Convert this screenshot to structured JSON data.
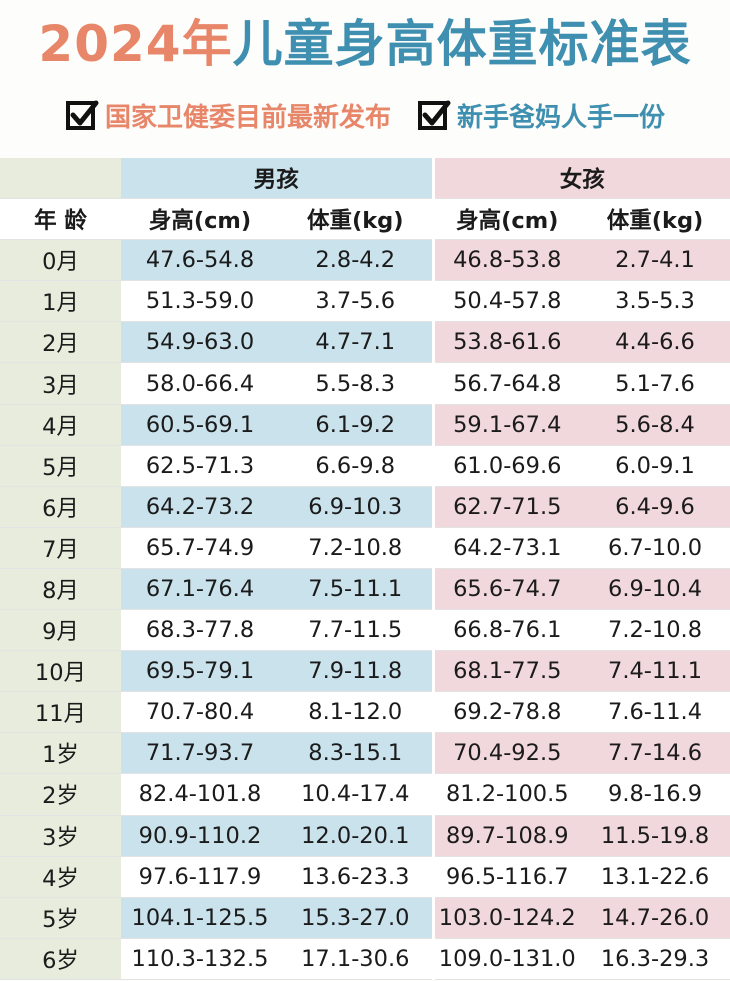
{
  "title": {
    "year": "2024年",
    "rest": "儿童身高体重标准表"
  },
  "subtitles": [
    {
      "icon": "checkbox-checked-icon",
      "text": "国家卫健委目前最新发布"
    },
    {
      "icon": "checkbox-checked-icon",
      "text": "新手爸妈人手一份"
    }
  ],
  "colors": {
    "orange": "#e8866a",
    "blue": "#3e8fb0",
    "boy_bg": "#c9e2ec",
    "girl_bg": "#f1d8dc",
    "age_bg": "#e7ecdd"
  },
  "table": {
    "groups": {
      "boy": "男孩",
      "girl": "女孩"
    },
    "headers": {
      "age": "年 龄",
      "boy_height": "身高(cm)",
      "boy_weight": "体重(kg)",
      "girl_height": "身高(cm)",
      "girl_weight": "体重(kg)"
    },
    "rows": [
      {
        "age": "0月",
        "bh": "47.6-54.8",
        "bw": "2.8-4.2",
        "gh": "46.8-53.8",
        "gw": "2.7-4.1"
      },
      {
        "age": "1月",
        "bh": "51.3-59.0",
        "bw": "3.7-5.6",
        "gh": "50.4-57.8",
        "gw": "3.5-5.3"
      },
      {
        "age": "2月",
        "bh": "54.9-63.0",
        "bw": "4.7-7.1",
        "gh": "53.8-61.6",
        "gw": "4.4-6.6"
      },
      {
        "age": "3月",
        "bh": "58.0-66.4",
        "bw": "5.5-8.3",
        "gh": "56.7-64.8",
        "gw": "5.1-7.6"
      },
      {
        "age": "4月",
        "bh": "60.5-69.1",
        "bw": "6.1-9.2",
        "gh": "59.1-67.4",
        "gw": "5.6-8.4"
      },
      {
        "age": "5月",
        "bh": "62.5-71.3",
        "bw": "6.6-9.8",
        "gh": "61.0-69.6",
        "gw": "6.0-9.1"
      },
      {
        "age": "6月",
        "bh": "64.2-73.2",
        "bw": "6.9-10.3",
        "gh": "62.7-71.5",
        "gw": "6.4-9.6"
      },
      {
        "age": "7月",
        "bh": "65.7-74.9",
        "bw": "7.2-10.8",
        "gh": "64.2-73.1",
        "gw": "6.7-10.0"
      },
      {
        "age": "8月",
        "bh": "67.1-76.4",
        "bw": "7.5-11.1",
        "gh": "65.6-74.7",
        "gw": "6.9-10.4"
      },
      {
        "age": "9月",
        "bh": "68.3-77.8",
        "bw": "7.7-11.5",
        "gh": "66.8-76.1",
        "gw": "7.2-10.8"
      },
      {
        "age": "10月",
        "bh": "69.5-79.1",
        "bw": "7.9-11.8",
        "gh": "68.1-77.5",
        "gw": "7.4-11.1"
      },
      {
        "age": "11月",
        "bh": "70.7-80.4",
        "bw": "8.1-12.0",
        "gh": "69.2-78.8",
        "gw": "7.6-11.4"
      },
      {
        "age": "1岁",
        "bh": "71.7-93.7",
        "bw": "8.3-15.1",
        "gh": "70.4-92.5",
        "gw": "7.7-14.6"
      },
      {
        "age": "2岁",
        "bh": "82.4-101.8",
        "bw": "10.4-17.4",
        "gh": "81.2-100.5",
        "gw": "9.8-16.9"
      },
      {
        "age": "3岁",
        "bh": "90.9-110.2",
        "bw": "12.0-20.1",
        "gh": "89.7-108.9",
        "gw": "11.5-19.8"
      },
      {
        "age": "4岁",
        "bh": "97.6-117.9",
        "bw": "13.6-23.3",
        "gh": "96.5-116.7",
        "gw": "13.1-22.6"
      },
      {
        "age": "5岁",
        "bh": "104.1-125.5",
        "bw": "15.3-27.0",
        "gh": "103.0-124.2",
        "gw": "14.7-26.0"
      },
      {
        "age": "6岁",
        "bh": "110.3-132.5",
        "bw": "17.1-30.6",
        "gh": "109.0-131.0",
        "gw": "16.3-29.3"
      }
    ]
  }
}
